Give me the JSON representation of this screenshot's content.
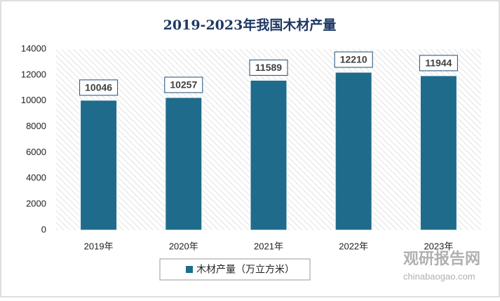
{
  "chart_data": {
    "type": "bar",
    "title": "2019-2023年我国木材产量",
    "categories": [
      "2019年",
      "2020年",
      "2021年",
      "2022年",
      "2023年"
    ],
    "series": [
      {
        "name": "木材产量（万立方米）",
        "color": "#1f6b8c",
        "values": [
          10046,
          10257,
          11589,
          12210,
          11944
        ]
      }
    ],
    "ylim": [
      0,
      14000
    ],
    "yticks": [
      0,
      2000,
      4000,
      6000,
      8000,
      10000,
      12000,
      14000
    ],
    "legend": "bottom"
  },
  "watermark": {
    "name": "观研报告网",
    "url": "chinabaogao.com"
  }
}
